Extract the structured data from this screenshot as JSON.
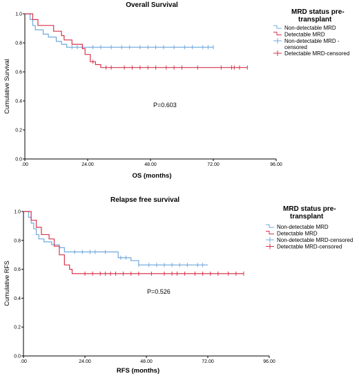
{
  "chart_data": [
    {
      "type": "line",
      "title": "Overall Survival",
      "xlabel": "OS (months)",
      "ylabel": "Cumulative Survival",
      "annotation": "P=0.603",
      "xlim": [
        0,
        96
      ],
      "ylim": [
        0,
        1.0
      ],
      "x_ticks": [
        ".00",
        "24.00",
        "48.00",
        "72.00",
        "96.00"
      ],
      "y_ticks": [
        "0.0",
        "0.2",
        "0.4",
        "0.6",
        "0.8",
        "1.0"
      ],
      "legend": {
        "title": "MRD status pre-transplant",
        "entries": [
          "Non-detectable MRD",
          "Detectable MRD",
          "Non-detectable MRD - censored",
          "Detectable MRD-censored"
        ]
      },
      "series": [
        {
          "name": "Non-detectable MRD",
          "color": "#6fa8dc",
          "steps": [
            [
              0,
              1.0
            ],
            [
              2,
              0.96
            ],
            [
              3,
              0.92
            ],
            [
              4,
              0.89
            ],
            [
              7,
              0.86
            ],
            [
              9,
              0.84
            ],
            [
              12,
              0.81
            ],
            [
              14,
              0.79
            ],
            [
              16,
              0.77
            ],
            [
              72,
              0.77
            ]
          ],
          "censored": [
            18,
            20,
            22,
            26,
            29,
            33,
            37,
            40,
            44,
            47,
            50,
            53,
            57,
            61,
            64,
            68,
            70,
            72
          ]
        },
        {
          "name": "Detectable MRD",
          "color": "#d6334b",
          "steps": [
            [
              0,
              1.0
            ],
            [
              3,
              0.96
            ],
            [
              5,
              0.92
            ],
            [
              11,
              0.88
            ],
            [
              14,
              0.85
            ],
            [
              15,
              0.82
            ],
            [
              18,
              0.79
            ],
            [
              22,
              0.76
            ],
            [
              23,
              0.72
            ],
            [
              25,
              0.67
            ],
            [
              27,
              0.65
            ],
            [
              29,
              0.63
            ],
            [
              85,
              0.63
            ]
          ],
          "censored": [
            26,
            31,
            33,
            38,
            41,
            44,
            47,
            50,
            54,
            57,
            60,
            66,
            75,
            79,
            80,
            82,
            85
          ]
        }
      ]
    },
    {
      "type": "line",
      "title": "Relapse free survival",
      "xlabel": "RFS (months)",
      "ylabel": "Cumulative RFS",
      "annotation": "P=0.526",
      "xlim": [
        0,
        96
      ],
      "ylim": [
        0,
        1.0
      ],
      "x_ticks": [
        ".00",
        "24.00",
        "48.00",
        "72.00",
        "96.00"
      ],
      "y_ticks": [
        "0.0",
        "0.2",
        "0.4",
        "0.6",
        "0.8",
        "1.0"
      ],
      "legend": {
        "title": "MRD status pre-transplant",
        "entries": [
          "Non-detectable MRD",
          "Detectable MRD",
          "Non-detectable MRD-censored",
          "Detectable MRD-censored"
        ]
      },
      "series": [
        {
          "name": "Non-detectable MRD",
          "color": "#6fa8dc",
          "steps": [
            [
              0,
              1.0
            ],
            [
              2,
              0.96
            ],
            [
              3,
              0.92
            ],
            [
              4,
              0.88
            ],
            [
              5,
              0.84
            ],
            [
              6,
              0.81
            ],
            [
              8,
              0.79
            ],
            [
              11,
              0.77
            ],
            [
              14,
              0.75
            ],
            [
              16,
              0.72
            ],
            [
              35,
              0.72
            ],
            [
              37,
              0.68
            ],
            [
              42,
              0.66
            ],
            [
              45,
              0.63
            ],
            [
              72,
              0.63
            ]
          ],
          "censored": [
            20,
            23,
            26,
            28,
            32,
            38,
            40,
            45,
            49,
            52,
            55,
            58,
            61,
            64,
            68,
            70
          ]
        },
        {
          "name": "Detectable MRD",
          "color": "#d6334b",
          "steps": [
            [
              0,
              1.0
            ],
            [
              3,
              0.94
            ],
            [
              5,
              0.89
            ],
            [
              7,
              0.84
            ],
            [
              10,
              0.81
            ],
            [
              12,
              0.76
            ],
            [
              14,
              0.7
            ],
            [
              16,
              0.63
            ],
            [
              18,
              0.6
            ],
            [
              19,
              0.57
            ],
            [
              86,
              0.57
            ]
          ],
          "censored": [
            24,
            27,
            30,
            32,
            34,
            36,
            39,
            42,
            45,
            50,
            55,
            58,
            60,
            63,
            67,
            70,
            73,
            76,
            80,
            83,
            86
          ]
        }
      ]
    }
  ]
}
